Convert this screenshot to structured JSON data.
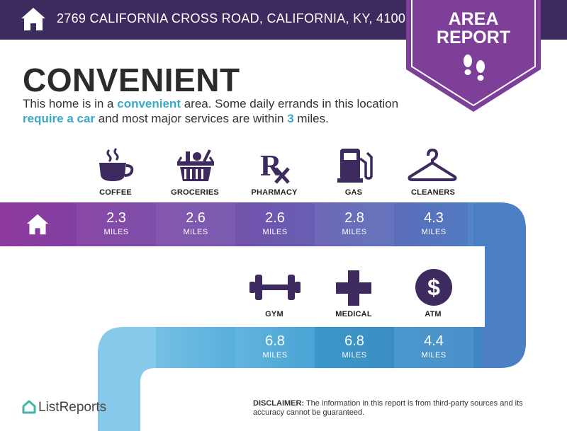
{
  "header": {
    "address": "2769 CALIFORNIA CROSS ROAD, CALIFORNIA, KY, 41007",
    "icon": "home-icon"
  },
  "badge": {
    "line1": "AREA",
    "line2": "REPORT",
    "icon": "footprints-icon"
  },
  "headline": "CONVENIENT",
  "summary": {
    "part1": "This home is in a ",
    "hl1": "convenient",
    "part2": " area. Some daily errands in this location ",
    "hl2": "require a car",
    "part3": " and most major services are within ",
    "hl3": "3",
    "part4": " miles."
  },
  "categories": [
    {
      "label": "COFFEE",
      "distance": "2.3",
      "unit": "MILES",
      "icon": "coffee-cup-icon"
    },
    {
      "label": "GROCERIES",
      "distance": "2.6",
      "unit": "MILES",
      "icon": "grocery-basket-icon"
    },
    {
      "label": "PHARMACY",
      "distance": "2.6",
      "unit": "MILES",
      "icon": "rx-icon"
    },
    {
      "label": "GAS",
      "distance": "2.8",
      "unit": "MILES",
      "icon": "gas-pump-icon"
    },
    {
      "label": "CLEANERS",
      "distance": "4.3",
      "unit": "MILES",
      "icon": "hanger-icon"
    },
    {
      "label": "GYM",
      "distance": "6.8",
      "unit": "MILES",
      "icon": "dumbbell-icon"
    },
    {
      "label": "MEDICAL",
      "distance": "6.8",
      "unit": "MILES",
      "icon": "medical-cross-icon"
    },
    {
      "label": "ATM",
      "distance": "4.4",
      "unit": "MILES",
      "icon": "dollar-icon"
    }
  ],
  "colors": {
    "header": "#3d2a5e",
    "badge": "#7e3f98",
    "highlight": "#3aa9c7",
    "band_start": "#8e3a9f",
    "band_end": "#3d86c4"
  },
  "footer": {
    "logo": "ListReports",
    "disclaimer_label": "DISCLAIMER:",
    "disclaimer_text": " The information in this report is from third-party sources and its accuracy cannot be guaranteed."
  }
}
